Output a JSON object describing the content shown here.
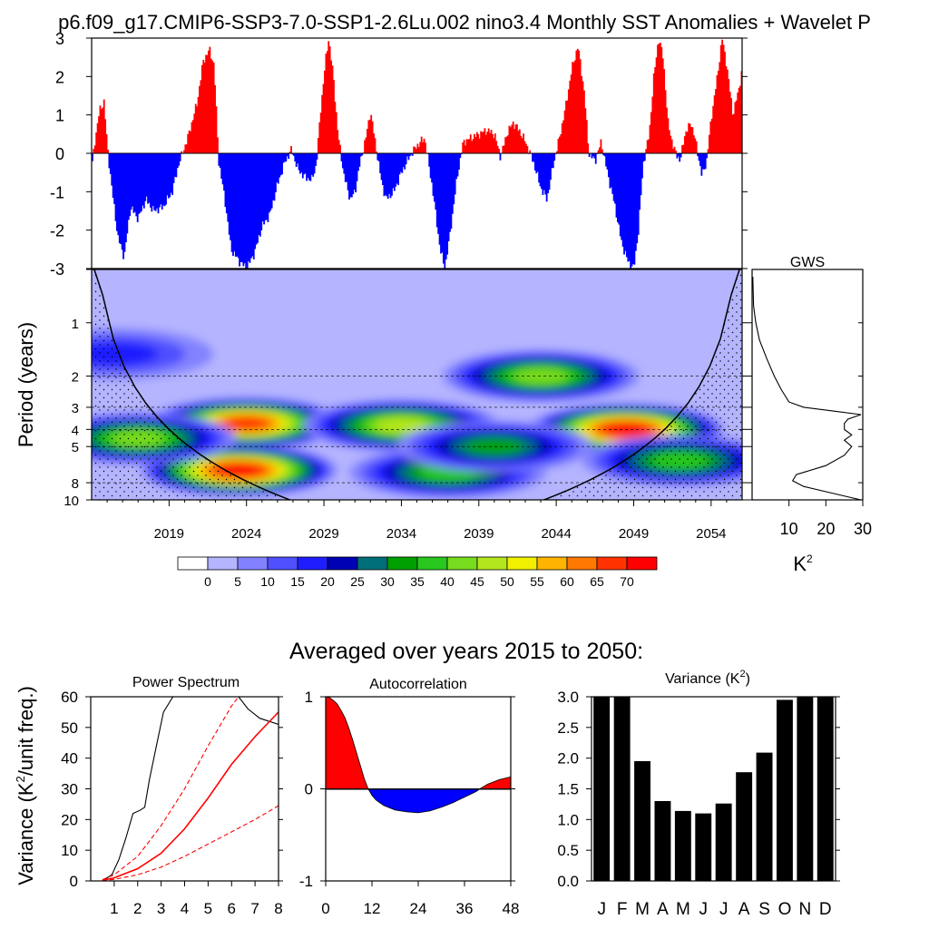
{
  "title": "p6.f09_g17.CMIP6-SSP3-7.0-SSP1-2.6Lu.002 nino3.4 Monthly SST Anomalies + Wavelet P",
  "colors": {
    "positive": "#ff0000",
    "negative": "#0000ff",
    "axis": "#000000"
  },
  "chart_data": [
    {
      "id": "timeseries",
      "type": "area",
      "ylim": [
        -3,
        3
      ],
      "y_ticks": [
        "3",
        "2",
        "1",
        "0",
        "-1",
        "-2",
        "-3"
      ],
      "x_start": 2014.0,
      "x_end": 2056.0,
      "key_points": [
        [
          2014.0,
          -0.4
        ],
        [
          2014.2,
          0.3
        ],
        [
          2014.5,
          1.1
        ],
        [
          2014.8,
          1.35
        ],
        [
          2015.0,
          0.2
        ],
        [
          2015.3,
          -0.9
        ],
        [
          2015.7,
          -2.2
        ],
        [
          2016.1,
          -2.7
        ],
        [
          2016.5,
          -1.4
        ],
        [
          2017.0,
          -1.7
        ],
        [
          2017.5,
          -1.2
        ],
        [
          2018.0,
          -1.5
        ],
        [
          2018.6,
          -1.4
        ],
        [
          2019.2,
          -1.0
        ],
        [
          2019.6,
          -0.3
        ],
        [
          2020.2,
          0.4
        ],
        [
          2020.8,
          1.3
        ],
        [
          2021.2,
          2.4
        ],
        [
          2021.6,
          2.7
        ],
        [
          2021.9,
          2.3
        ],
        [
          2022.2,
          -0.2
        ],
        [
          2022.6,
          -1.2
        ],
        [
          2023.0,
          -2.5
        ],
        [
          2023.5,
          -2.8
        ],
        [
          2024.0,
          -3.0
        ],
        [
          2024.5,
          -2.6
        ],
        [
          2025.0,
          -1.9
        ],
        [
          2025.5,
          -1.6
        ],
        [
          2026.0,
          -0.8
        ],
        [
          2026.5,
          -0.2
        ],
        [
          2026.9,
          0.1
        ],
        [
          2027.3,
          -0.4
        ],
        [
          2027.7,
          -0.6
        ],
        [
          2028.2,
          -0.7
        ],
        [
          2028.5,
          -0.3
        ],
        [
          2028.8,
          1.2
        ],
        [
          2029.1,
          2.4
        ],
        [
          2029.3,
          3.0
        ],
        [
          2029.6,
          2.0
        ],
        [
          2029.9,
          0.5
        ],
        [
          2030.3,
          -0.6
        ],
        [
          2030.7,
          -1.2
        ],
        [
          2031.0,
          -1.0
        ],
        [
          2031.3,
          -0.3
        ],
        [
          2031.7,
          0.4
        ],
        [
          2032.0,
          1.1
        ],
        [
          2032.3,
          0.3
        ],
        [
          2032.7,
          -0.7
        ],
        [
          2033.0,
          -1.2
        ],
        [
          2033.5,
          -1.0
        ],
        [
          2034.0,
          -0.5
        ],
        [
          2034.5,
          -0.1
        ],
        [
          2035.0,
          0.2
        ],
        [
          2035.5,
          0.4
        ],
        [
          2036.0,
          -0.9
        ],
        [
          2036.5,
          -2.5
        ],
        [
          2036.8,
          -3.0
        ],
        [
          2037.1,
          -2.2
        ],
        [
          2037.6,
          -0.6
        ],
        [
          2038.0,
          0.3
        ],
        [
          2038.5,
          0.4
        ],
        [
          2039.0,
          0.5
        ],
        [
          2039.5,
          0.6
        ],
        [
          2040.0,
          0.5
        ],
        [
          2040.4,
          -0.1
        ],
        [
          2040.8,
          0.5
        ],
        [
          2041.2,
          0.8
        ],
        [
          2041.6,
          0.6
        ],
        [
          2042.0,
          0.3
        ],
        [
          2042.5,
          -0.2
        ],
        [
          2043.0,
          -0.9
        ],
        [
          2043.4,
          -1.2
        ],
        [
          2043.8,
          -0.3
        ],
        [
          2044.2,
          0.4
        ],
        [
          2044.6,
          1.2
        ],
        [
          2045.0,
          2.2
        ],
        [
          2045.4,
          2.8
        ],
        [
          2045.8,
          1.6
        ],
        [
          2046.1,
          0.0
        ],
        [
          2046.5,
          -0.2
        ],
        [
          2046.9,
          0.3
        ],
        [
          2047.3,
          -0.5
        ],
        [
          2047.8,
          -1.4
        ],
        [
          2048.2,
          -2.3
        ],
        [
          2048.6,
          -2.8
        ],
        [
          2049.0,
          -3.0
        ],
        [
          2049.3,
          -2.0
        ],
        [
          2049.6,
          -0.3
        ],
        [
          2050.0,
          0.5
        ],
        [
          2050.3,
          2.0
        ],
        [
          2050.6,
          3.0
        ],
        [
          2050.9,
          2.5
        ],
        [
          2051.2,
          0.8
        ],
        [
          2051.6,
          0.1
        ],
        [
          2052.0,
          -0.2
        ],
        [
          2052.3,
          0.5
        ],
        [
          2052.7,
          0.8
        ],
        [
          2053.0,
          0.3
        ],
        [
          2053.4,
          -0.6
        ],
        [
          2053.7,
          -0.2
        ],
        [
          2054.0,
          0.9
        ],
        [
          2054.4,
          2.0
        ],
        [
          2054.7,
          3.0
        ],
        [
          2055.0,
          2.3
        ],
        [
          2055.4,
          1.0
        ],
        [
          2055.8,
          1.7
        ],
        [
          2056.0,
          2.2
        ]
      ]
    },
    {
      "id": "wavelet",
      "type": "heatmap",
      "ylabel": "Period (years)",
      "y_ticks": [
        "1",
        "2",
        "3",
        "4",
        "5",
        "8",
        "10"
      ],
      "x_ticks": [
        "2019",
        "2024",
        "2029",
        "2034",
        "2039",
        "2044",
        "2049",
        "2054"
      ],
      "colorbar_labels": [
        "0",
        "5",
        "10",
        "15",
        "20",
        "25",
        "30",
        "35",
        "40",
        "45",
        "50",
        "55",
        "60",
        "65",
        "70"
      ],
      "colorbar_colors": [
        "#ffffff",
        "#b4b4ff",
        "#8282ff",
        "#5050ff",
        "#1e1eff",
        "#0000b4",
        "#006e78",
        "#00a000",
        "#28c81e",
        "#78dc1e",
        "#b4e61e",
        "#f0f000",
        "#ffb400",
        "#ff7800",
        "#ff3200",
        "#ff0000"
      ],
      "blobs": [
        {
          "year": 2024.0,
          "period": 3.7,
          "power": 68
        },
        {
          "year": 2023.5,
          "period": 6.8,
          "power": 70
        },
        {
          "year": 2048.5,
          "period": 4.0,
          "power": 70
        },
        {
          "year": 2034.0,
          "period": 3.8,
          "power": 45
        },
        {
          "year": 2043.0,
          "period": 2.0,
          "power": 40
        },
        {
          "year": 2017.0,
          "period": 4.5,
          "power": 40
        },
        {
          "year": 2037.0,
          "period": 7.0,
          "power": 35
        },
        {
          "year": 2052.0,
          "period": 6.0,
          "power": 35
        },
        {
          "year": 2040.0,
          "period": 5.0,
          "power": 30
        },
        {
          "year": 2015.5,
          "period": 1.5,
          "power": 15
        }
      ]
    },
    {
      "id": "gws",
      "type": "line",
      "title": "GWS",
      "xlabel": "K²",
      "x_ticks": [
        "10",
        "20",
        "30"
      ],
      "xlim": [
        0,
        30
      ],
      "points": [
        [
          0.2,
          0.55
        ],
        [
          0.4,
          0.8
        ],
        [
          1.0,
          1.0
        ],
        [
          2.0,
          1.25
        ],
        [
          4.0,
          1.6
        ],
        [
          6.0,
          2.0
        ],
        [
          8.0,
          2.4
        ],
        [
          10.0,
          2.8
        ],
        [
          14.0,
          3.0
        ],
        [
          22.0,
          3.15
        ],
        [
          29.5,
          3.3
        ],
        [
          26.0,
          3.5
        ],
        [
          25.0,
          3.7
        ],
        [
          25.0,
          4.0
        ],
        [
          27.0,
          4.3
        ],
        [
          25.0,
          4.6
        ],
        [
          27.0,
          5.0
        ],
        [
          25.0,
          5.6
        ],
        [
          20.0,
          6.4
        ],
        [
          12.0,
          7.2
        ],
        [
          11.0,
          7.8
        ],
        [
          14.0,
          8.4
        ],
        [
          22.0,
          9.2
        ],
        [
          29.5,
          10.0
        ]
      ]
    },
    {
      "id": "power_spectrum",
      "type": "line",
      "title": "Power Spectrum",
      "ylabel": "Variance (K²/unit freq.)",
      "x_ticks": [
        "1",
        "2",
        "3",
        "4",
        "5",
        "6",
        "7",
        "8"
      ],
      "y_ticks": [
        "0",
        "10",
        "20",
        "30",
        "40",
        "50",
        "60"
      ],
      "xlim": [
        0,
        8
      ],
      "ylim": [
        0,
        60
      ],
      "series": [
        {
          "points": [
            [
              0.5,
              0
            ],
            [
              0.9,
              2
            ],
            [
              1.2,
              7
            ],
            [
              1.5,
              14
            ],
            [
              1.8,
              22
            ],
            [
              2.1,
              23
            ],
            [
              2.3,
              24
            ],
            [
              2.5,
              33
            ],
            [
              2.8,
              44
            ],
            [
              3.1,
              55
            ],
            [
              3.5,
              60
            ],
            [
              6.3,
              60
            ],
            [
              6.7,
              56
            ],
            [
              7.2,
              53
            ],
            [
              8.0,
              51
            ]
          ],
          "color": "#000000",
          "dash": ""
        },
        {
          "points": [
            [
              0.5,
              0.2
            ],
            [
              1,
              1
            ],
            [
              2,
              4
            ],
            [
              3,
              9
            ],
            [
              4,
              17
            ],
            [
              5,
              27
            ],
            [
              6,
              38
            ],
            [
              7,
              47
            ],
            [
              8,
              55
            ]
          ],
          "color": "#ff0000",
          "dash": ""
        },
        {
          "points": [
            [
              0.5,
              0.4
            ],
            [
              1,
              2
            ],
            [
              2,
              8
            ],
            [
              3,
              18
            ],
            [
              4,
              30
            ],
            [
              5,
              44
            ],
            [
              6,
              57
            ],
            [
              6.3,
              60
            ]
          ],
          "color": "#ff0000",
          "dash": "5,3"
        },
        {
          "points": [
            [
              0.5,
              0.1
            ],
            [
              1,
              0.5
            ],
            [
              2,
              2
            ],
            [
              3,
              4.5
            ],
            [
              4,
              8
            ],
            [
              5,
              12
            ],
            [
              6,
              16
            ],
            [
              7,
              20
            ],
            [
              8,
              24.5
            ]
          ],
          "color": "#ff0000",
          "dash": "5,3"
        }
      ]
    },
    {
      "id": "autocorrelation",
      "type": "area",
      "title": "Autocorrelation",
      "x_ticks": [
        "0",
        "12",
        "24",
        "36",
        "48"
      ],
      "y_ticks": [
        "1",
        "0",
        "-1"
      ],
      "xlim": [
        0,
        48
      ],
      "ylim": [
        -1,
        1
      ],
      "points": [
        [
          0,
          1.0
        ],
        [
          1,
          0.99
        ],
        [
          2,
          0.96
        ],
        [
          3,
          0.92
        ],
        [
          4,
          0.85
        ],
        [
          5,
          0.77
        ],
        [
          6,
          0.66
        ],
        [
          7,
          0.53
        ],
        [
          8,
          0.39
        ],
        [
          9,
          0.25
        ],
        [
          10,
          0.11
        ],
        [
          11,
          0.0
        ],
        [
          12,
          -0.07
        ],
        [
          13,
          -0.12
        ],
        [
          15,
          -0.18
        ],
        [
          18,
          -0.23
        ],
        [
          21,
          -0.25
        ],
        [
          24,
          -0.26
        ],
        [
          27,
          -0.24
        ],
        [
          30,
          -0.2
        ],
        [
          33,
          -0.15
        ],
        [
          36,
          -0.09
        ],
        [
          39,
          -0.03
        ],
        [
          40,
          0.0
        ],
        [
          42,
          0.05
        ],
        [
          45,
          0.1
        ],
        [
          48,
          0.13
        ]
      ]
    },
    {
      "id": "variance",
      "type": "bar",
      "title": "Variance (K²)",
      "categories": [
        "J",
        "F",
        "M",
        "A",
        "M",
        "J",
        "J",
        "A",
        "S",
        "O",
        "N",
        "D"
      ],
      "values": [
        3.0,
        3.0,
        1.95,
        1.3,
        1.14,
        1.1,
        1.26,
        1.77,
        2.09,
        2.95,
        3.0,
        3.0
      ],
      "y_ticks": [
        "0.0",
        "0.5",
        "1.0",
        "1.5",
        "2.0",
        "2.5",
        "3.0"
      ],
      "ylim": [
        0,
        3
      ]
    }
  ],
  "averaged_title": "Averaged over years 2015 to 2050:",
  "labels": {
    "gws_title": "GWS",
    "gws_unit": "K",
    "gws_unit_sup": "2",
    "ps_title": "Power Spectrum",
    "ps_ylabel_a": "Variance (K",
    "ps_ylabel_sup": "2",
    "ps_ylabel_b": "/unit freq.)",
    "ac_title": "Autocorrelation",
    "var_title_a": "Variance (K",
    "var_title_sup": "2",
    "var_title_b": ")"
  }
}
